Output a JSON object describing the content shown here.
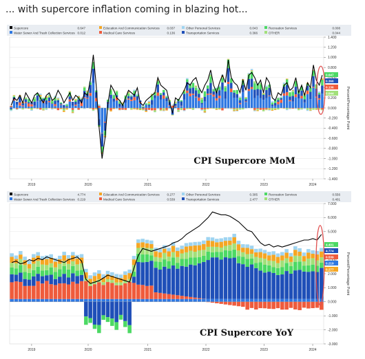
{
  "headline": "... with supercore inflation coming in blazing hot...",
  "colors": {
    "supercore": "#000000",
    "education": "#f5a623",
    "other_personal": "#9fd4f0",
    "recreation": "#4cd964",
    "water": "#2f78e2",
    "medical": "#ef5b3c",
    "transportation": "#1f4fb8",
    "other": "#a2e07a",
    "highlight": "#e05050"
  },
  "chart_data": [
    {
      "type": "bar",
      "stacked": true,
      "title": "CPI Supercore MoM",
      "ylabel": "Percent/Percentage Point",
      "ylim": [
        -1.4,
        1.4
      ],
      "yticks": [
        "1.400",
        "1.200",
        "1.000",
        "0.800",
        "0.600",
        "0.400",
        "0.200",
        "0.000",
        "-0.200",
        "-0.400",
        "-0.600",
        "-0.800",
        "-1.000",
        "-1.200",
        "-1.400"
      ],
      "xticks": [
        "2019",
        "2020",
        "2021",
        "2022",
        "2023",
        "2024"
      ],
      "legend": [
        {
          "name": "Supercore",
          "value": "0.647",
          "key": "supercore"
        },
        {
          "name": "Education And Communication Services",
          "value": "0.037",
          "key": "education"
        },
        {
          "name": "Other Personal Services",
          "value": "0.043",
          "key": "other_personal"
        },
        {
          "name": "Recreation Services",
          "value": "0.008",
          "key": "recreation"
        },
        {
          "name": "Water Sewer And Trash Collection Services",
          "value": "0.012",
          "key": "water"
        },
        {
          "name": "Medical Care Services",
          "value": "0.136",
          "key": "medical"
        },
        {
          "name": "Transportation Services",
          "value": "0.366",
          "key": "transportation"
        },
        {
          "name": "OTHER",
          "value": "0.044",
          "key": "other"
        }
      ],
      "end_labels": [
        {
          "value": "0.647",
          "key": "recreation"
        },
        {
          "value": "0.366",
          "key": "transportation"
        },
        {
          "value": "0.136",
          "key": "medical"
        },
        {
          "value": "0.044",
          "key": "other"
        }
      ],
      "supercore": [
        0.05,
        0.2,
        0.15,
        0.25,
        0.1,
        0.3,
        0.2,
        0.1,
        0.25,
        0.3,
        0.2,
        0.1,
        0.25,
        0.3,
        0.15,
        0.2,
        0.35,
        0.25,
        0.1,
        0.2,
        0.3,
        0.15,
        0.25,
        0.2,
        0.1,
        0.3,
        0.25,
        0.55,
        1.05,
        0.45,
        -0.4,
        -1.0,
        -0.6,
        0.1,
        0.45,
        0.35,
        0.2,
        0.15,
        0.05,
        0.2,
        0.35,
        0.3,
        0.25,
        0.4,
        0.1,
        0.05,
        0.15,
        0.2,
        0.25,
        0.3,
        0.6,
        0.45,
        0.4,
        0.35,
        0.1,
        -0.1,
        0.2,
        0.15,
        0.25,
        0.35,
        0.5,
        0.45,
        0.55,
        0.6,
        0.4,
        0.3,
        0.45,
        0.55,
        0.75,
        0.45,
        0.3,
        0.5,
        0.65,
        0.5,
        0.95,
        0.6,
        0.5,
        0.45,
        0.3,
        0.55,
        0.35,
        0.65,
        0.7,
        0.6,
        0.45,
        0.55,
        0.3,
        0.6,
        0.5,
        0.2,
        0.15,
        0.3,
        0.25,
        0.45,
        0.5,
        0.35,
        0.4,
        0.6,
        0.3,
        0.45,
        0.25,
        0.5,
        0.4,
        0.85,
        0.55,
        0.45,
        0.65
      ],
      "series_order": [
        "water",
        "medical",
        "transportation",
        "recreation",
        "other",
        "education",
        "other_personal"
      ]
    },
    {
      "type": "bar",
      "stacked": true,
      "title": "CPI Supercore YoY",
      "ylabel": "Percent/Percentage Point",
      "ylim": [
        -3.0,
        7.0
      ],
      "yticks": [
        "7.000",
        "6.000",
        "5.000",
        "4.000",
        "3.000",
        "2.000",
        "1.000",
        "0.000",
        "-1.000",
        "-2.000",
        "-3.000"
      ],
      "xticks": [
        "2019",
        "2020",
        "2021",
        "2022",
        "2023",
        "2024"
      ],
      "legend": [
        {
          "name": "Supercore",
          "value": "4.774",
          "key": "supercore"
        },
        {
          "name": "Education And Communication Services",
          "value": "0.277",
          "key": "education"
        },
        {
          "name": "Other Personal Services",
          "value": "0.305",
          "key": "other_personal"
        },
        {
          "name": "Recreation Services",
          "value": "0.556",
          "key": "recreation"
        },
        {
          "name": "Water Sewer And Trash Collection Services",
          "value": "0.219",
          "key": "water"
        },
        {
          "name": "Medical Care Services",
          "value": "0.539",
          "key": "medical"
        },
        {
          "name": "Transportation Services",
          "value": "2.477",
          "key": "transportation"
        },
        {
          "name": "OTHER",
          "value": "0.401",
          "key": "other"
        }
      ],
      "end_labels": [
        {
          "value": "4.401",
          "key": "recreation"
        },
        {
          "value": "4.774",
          "key": "transportation"
        },
        {
          "value": "0.539",
          "key": "medical"
        },
        {
          "value": "0.219",
          "key": "water"
        },
        {
          "value": "0.277",
          "key": "education"
        }
      ],
      "supercore": [
        2.8,
        2.9,
        2.7,
        2.8,
        3.0,
        2.9,
        3.1,
        3.0,
        3.2,
        3.1,
        3.0,
        2.9,
        2.8,
        3.0,
        3.1,
        3.2,
        2.9,
        1.6,
        1.3,
        1.4,
        1.5,
        1.7,
        1.9,
        1.8,
        1.7,
        1.6,
        1.5,
        1.4,
        2.4,
        3.3,
        3.8,
        3.7,
        3.6,
        3.7,
        3.8,
        3.9,
        4.0,
        4.2,
        4.3,
        4.5,
        4.8,
        5.0,
        5.2,
        5.4,
        5.7,
        6.0,
        6.4,
        6.3,
        6.2,
        6.2,
        6.1,
        5.9,
        5.7,
        5.4,
        5.1,
        5.0,
        4.6,
        4.2,
        4.0,
        4.1,
        3.9,
        4.0,
        3.9,
        4.0,
        4.1,
        4.2,
        4.3,
        4.4,
        4.4,
        4.5,
        4.4,
        4.8
      ]
    }
  ]
}
